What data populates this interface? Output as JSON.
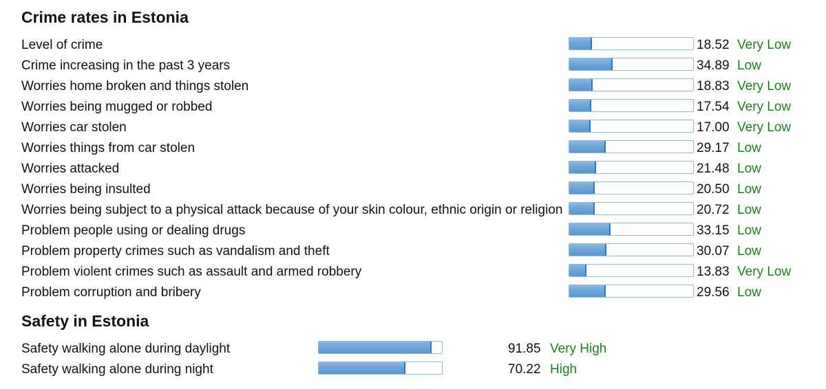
{
  "crime_section": {
    "title": "Crime rates in Estonia",
    "rows": [
      {
        "label": "Level of crime",
        "value": "18.52",
        "rating": "Very Low",
        "score": 18.52
      },
      {
        "label": "Crime increasing in the past 3 years",
        "value": "34.89",
        "rating": "Low",
        "score": 34.89
      },
      {
        "label": "Worries home broken and things stolen",
        "value": "18.83",
        "rating": "Very Low",
        "score": 18.83
      },
      {
        "label": "Worries being mugged or robbed",
        "value": "17.54",
        "rating": "Very Low",
        "score": 17.54
      },
      {
        "label": "Worries car stolen",
        "value": "17.00",
        "rating": "Very Low",
        "score": 17.0
      },
      {
        "label": "Worries things from car stolen",
        "value": "29.17",
        "rating": "Low",
        "score": 29.17
      },
      {
        "label": "Worries attacked",
        "value": "21.48",
        "rating": "Low",
        "score": 21.48
      },
      {
        "label": "Worries being insulted",
        "value": "20.50",
        "rating": "Low",
        "score": 20.5
      },
      {
        "label": "Worries being subject to a physical attack because of your skin colour, ethnic origin or religion",
        "value": "20.72",
        "rating": "Low",
        "score": 20.72
      },
      {
        "label": "Problem people using or dealing drugs",
        "value": "33.15",
        "rating": "Low",
        "score": 33.15
      },
      {
        "label": "Problem property crimes such as vandalism and theft",
        "value": "30.07",
        "rating": "Low",
        "score": 30.07
      },
      {
        "label": "Problem violent crimes such as assault and armed robbery",
        "value": "13.83",
        "rating": "Very Low",
        "score": 13.83
      },
      {
        "label": "Problem corruption and bribery",
        "value": "29.56",
        "rating": "Low",
        "score": 29.56
      }
    ]
  },
  "safety_section": {
    "title": "Safety in Estonia",
    "rows": [
      {
        "label": "Safety walking alone during daylight",
        "value": "91.85",
        "rating": "Very High",
        "score": 91.85
      },
      {
        "label": "Safety walking alone during night",
        "value": "70.22",
        "rating": "High",
        "score": 70.22
      }
    ]
  },
  "colors": {
    "bar_fill": "#6ea6d6",
    "bar_border": "#8fb8dc",
    "rating_text": "#1e7d1e",
    "text": "#111111"
  }
}
